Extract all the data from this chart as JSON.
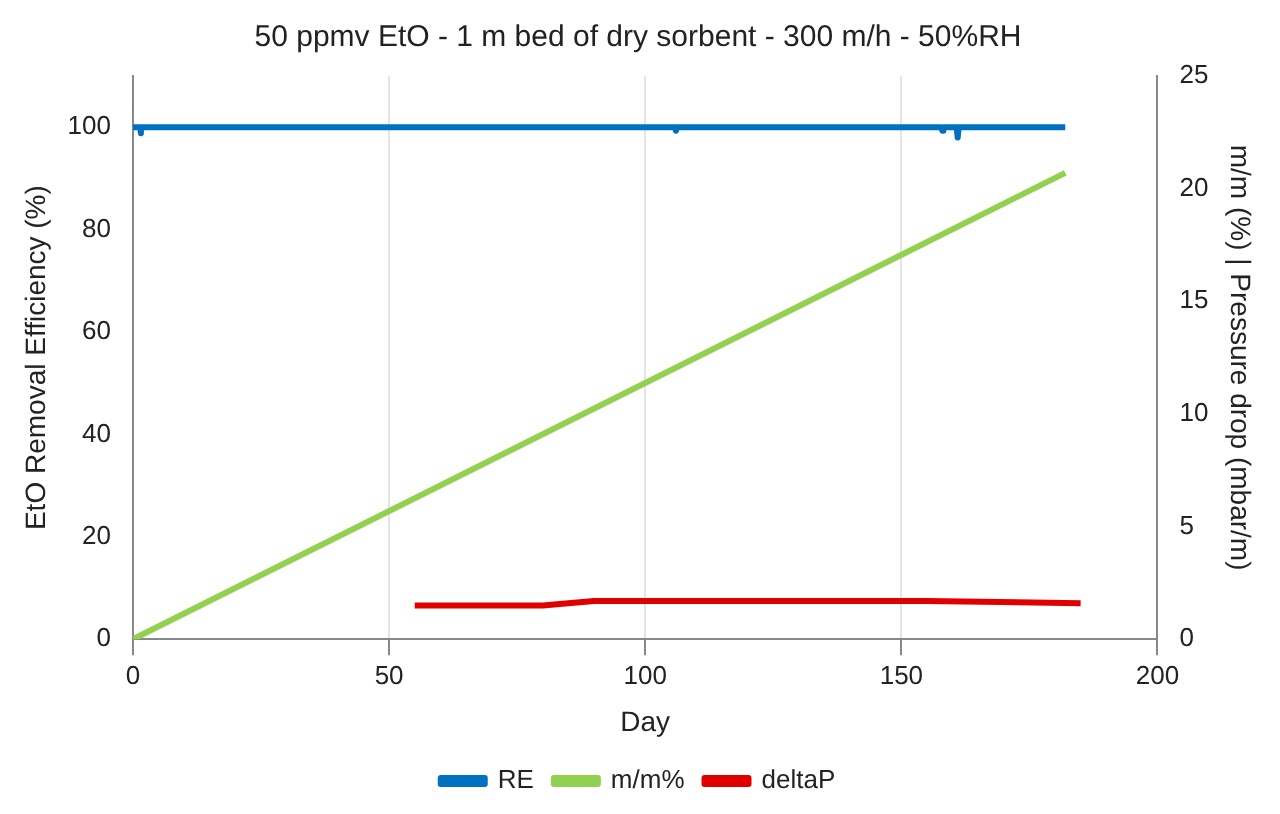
{
  "chart_data": {
    "type": "line",
    "title": "50 ppmv EtO - 1 m bed of dry sorbent - 300 m/h - 50%RH",
    "xlabel": "Day",
    "ylabel": "EtO Removal Efficiency (%)",
    "y2label": "m/m (%) | Pressure drop (mbar/m)",
    "xlim": [
      0,
      200
    ],
    "xticks": [
      0,
      50,
      100,
      150,
      200
    ],
    "ylim": [
      0,
      110
    ],
    "yticks": [
      0,
      20,
      40,
      60,
      80,
      100
    ],
    "y2lim": [
      0,
      25
    ],
    "y2ticks": [
      0,
      5,
      10,
      15,
      20,
      25
    ],
    "grid": "x",
    "legend": "bottom",
    "marker": "none",
    "line_style": "solid",
    "series": [
      {
        "name": "RE",
        "color": "#0070c0",
        "x": [
          0,
          1.4,
          1.5,
          1.6,
          105.8,
          106,
          106.2,
          157.8,
          158,
          158.2,
          160.8,
          161,
          161.2,
          182
        ],
        "values": [
          100,
          100,
          98.8,
          100,
          100,
          99.3,
          100,
          100,
          99.3,
          100,
          100,
          98,
          100,
          100
        ]
      },
      {
        "name": "m/m%",
        "color": "#92d050",
        "axis": "y2",
        "x": [
          0,
          182
        ],
        "values": [
          0,
          20.7
        ]
      },
      {
        "name": "deltaP",
        "color": "#e00000",
        "axis": "y2",
        "x": [
          55,
          80,
          90,
          155,
          185
        ],
        "values": [
          1.5,
          1.5,
          1.7,
          1.7,
          1.6
        ]
      }
    ]
  }
}
